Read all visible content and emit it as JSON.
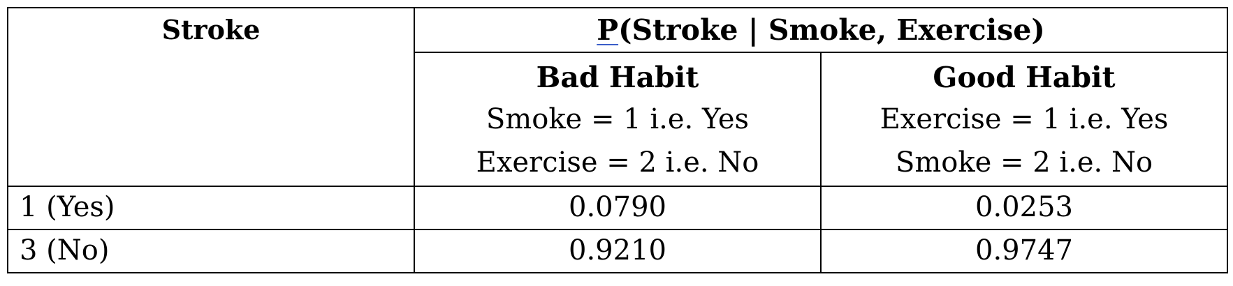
{
  "table": {
    "stroke_header": "Stroke",
    "main_header_prefix": "P",
    "main_header_rest": "(Stroke | Smoke, Exercise)",
    "columns": [
      {
        "title": "Bad Habit",
        "line1": "Smoke = 1 i.e. Yes",
        "line2": "Exercise = 2 i.e. No"
      },
      {
        "title": "Good Habit",
        "line1": "Exercise = 1 i.e. Yes",
        "line2": "Smoke = 2 i.e. No"
      }
    ],
    "rows": [
      {
        "label": "1 (Yes)",
        "bad": "0.0790",
        "good": "0.0253"
      },
      {
        "label": "3 (No)",
        "bad": "0.9210",
        "good": "0.9747"
      }
    ]
  }
}
